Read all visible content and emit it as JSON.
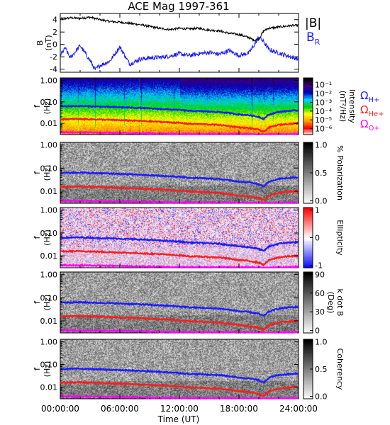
{
  "title": "ACE Mag 1997-361",
  "time_axis": {
    "label": "Time (UT)",
    "ticks": [
      "00:00:00",
      "06:00:00",
      "12:00:00",
      "18:00:00",
      "24:00:00"
    ],
    "range_hours": [
      0,
      24
    ]
  },
  "legends": {
    "b_total": "|B|",
    "b_r": "B",
    "b_r_sub": "R",
    "b_total_color": "#000000",
    "b_r_color": "#1c1cff"
  },
  "gyro_legend": {
    "items": [
      {
        "symbol": "Ω",
        "sub": "H+",
        "color": "#1c1cff"
      },
      {
        "symbol": "Ω",
        "sub": "He+",
        "color": "#ff1c1c"
      },
      {
        "symbol": "Ω",
        "sub": "O+",
        "color": "#ff00ff"
      }
    ]
  },
  "freq_axis": {
    "label_f": "f",
    "label_unit": "(Hz)",
    "ticks": [
      "1.00",
      "0.10",
      "0.01"
    ]
  },
  "chart_data": [
    {
      "type": "line",
      "panel": "magnetic-field",
      "ylabel": "B",
      "yunit": "(nT)",
      "ylim": [
        -4.5,
        5
      ],
      "yticks": [
        "4",
        "2",
        "0",
        "-2",
        "-4"
      ],
      "series": [
        {
          "name": "|B|",
          "color": "#000000",
          "x": [
            0,
            1,
            2,
            3,
            4,
            5,
            6,
            7,
            8,
            9,
            10,
            11,
            12,
            13,
            14,
            15,
            16,
            17,
            18,
            19,
            19.5,
            20,
            20.5,
            21,
            22,
            23,
            24
          ],
          "y": [
            4.1,
            4.3,
            4.2,
            4.4,
            4.0,
            3.7,
            3.6,
            3.4,
            3.2,
            2.9,
            2.6,
            2.4,
            2.6,
            2.5,
            2.6,
            2.3,
            2.2,
            1.8,
            1.6,
            1.1,
            0.7,
            0.9,
            2.2,
            2.6,
            2.8,
            3.0,
            3.1
          ]
        },
        {
          "name": "B_R",
          "color": "#1c1cff",
          "x": [
            0,
            0.5,
            1,
            2,
            3,
            3.5,
            4,
            5,
            6,
            7,
            8,
            9,
            10,
            11,
            12,
            13,
            14,
            15,
            16,
            17,
            18,
            19,
            19.5,
            20,
            20.5,
            21,
            22,
            23,
            24
          ],
          "y": [
            -1.8,
            -0.6,
            -2.2,
            -0.2,
            -2.6,
            -4.1,
            -3.4,
            -2.7,
            -0.4,
            -3.2,
            -2.4,
            -2.2,
            -2.1,
            -1.9,
            -1.5,
            -1.8,
            -1.5,
            -1.3,
            -1.6,
            -1.0,
            -1.8,
            -1.4,
            -0.2,
            1.2,
            0.4,
            -0.8,
            -1.4,
            -1.9,
            -2.4
          ]
        }
      ]
    },
    {
      "type": "heatmap",
      "panel": "intensity-spectrogram",
      "colorbar_label": "Intensity",
      "colorbar_unit": "(nT²/Hz)",
      "colorbar_ticks": [
        "10⁻¹",
        "10⁻²",
        "10⁻³",
        "10⁻⁴",
        "10⁻⁵",
        "10⁻⁶"
      ],
      "colorbar_colors": [
        "#ffffff",
        "#ff0000",
        "#ffa000",
        "#ffff00",
        "#00d000",
        "#00d0ff",
        "#0000c0",
        "#40007a",
        "#000000"
      ]
    },
    {
      "type": "heatmap",
      "panel": "polarization-spectrogram",
      "colorbar_label": "% Polarization",
      "colorbar_ticks": [
        "1.0",
        "0.5",
        "0.0"
      ],
      "colorbar_colors": [
        "#000000",
        "#ffffff"
      ]
    },
    {
      "type": "heatmap",
      "panel": "ellipticity-spectrogram",
      "colorbar_label": "Ellipticity",
      "colorbar_ticks": [
        "1",
        "0",
        "-1"
      ],
      "colorbar_colors": [
        "#ff0000",
        "#ffffff",
        "#0000ff"
      ]
    },
    {
      "type": "heatmap",
      "panel": "k-dot-b-spectrogram",
      "colorbar_label": "k dot B",
      "colorbar_unit": "(Deg)",
      "colorbar_ticks": [
        "90",
        "60",
        "30",
        "0"
      ],
      "colorbar_colors": [
        "#000000",
        "#ffffff"
      ]
    },
    {
      "type": "heatmap",
      "panel": "coherency-spectrogram",
      "colorbar_label": "Coherency",
      "colorbar_ticks": [
        "1.0",
        "0.5",
        "0.0"
      ],
      "colorbar_colors": [
        "#000000",
        "#ffffff"
      ]
    },
    {
      "type": "line",
      "panel": "gyrofrequency-overlays",
      "ylim_hz_log": [
        0.003,
        1.3
      ],
      "series": [
        {
          "name": "Ω H+",
          "color": "#1c1cff",
          "x": [
            0,
            2,
            4,
            6,
            8,
            10,
            12,
            13,
            14,
            15,
            16,
            17,
            18,
            19,
            20,
            20.5,
            21,
            22,
            23,
            24
          ],
          "y": [
            0.062,
            0.064,
            0.06,
            0.056,
            0.052,
            0.047,
            0.042,
            0.038,
            0.037,
            0.035,
            0.034,
            0.03,
            0.026,
            0.024,
            0.02,
            0.016,
            0.025,
            0.034,
            0.038,
            0.04
          ]
        },
        {
          "name": "Ω He+",
          "color": "#ff1c1c",
          "x": [
            0,
            2,
            4,
            6,
            8,
            10,
            12,
            13,
            14,
            15,
            16,
            17,
            18,
            19,
            20,
            20.5,
            21,
            22,
            23,
            24
          ],
          "y": [
            0.0155,
            0.016,
            0.015,
            0.014,
            0.013,
            0.0118,
            0.0105,
            0.0095,
            0.0093,
            0.0088,
            0.0085,
            0.0075,
            0.0065,
            0.006,
            0.005,
            0.004,
            0.0063,
            0.0085,
            0.0095,
            0.01
          ]
        },
        {
          "name": "Ω O+",
          "color": "#ff00ff",
          "x": [
            0,
            6,
            12,
            18,
            20.5,
            24
          ],
          "y": [
            0.0039,
            0.0036,
            0.0032,
            0.0032,
            0.003,
            0.0033
          ]
        }
      ]
    }
  ]
}
